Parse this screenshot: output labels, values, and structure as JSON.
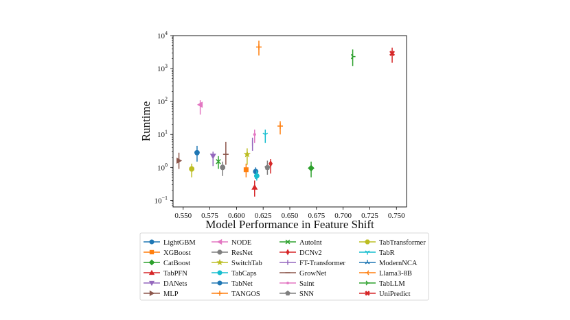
{
  "chart_data": {
    "type": "scatter",
    "xlabel": "Model Performance in Feature Shift",
    "ylabel": "Runtime",
    "xscale": "linear",
    "yscale": "log",
    "xlim": [
      0.5405,
      0.7595
    ],
    "ylim_log10": [
      -1.2,
      4.0
    ],
    "x_ticks": [
      0.55,
      0.575,
      0.6,
      0.625,
      0.65,
      0.675,
      0.7,
      0.725,
      0.75
    ],
    "x_tick_labels": [
      "0.550",
      "0.575",
      "0.600",
      "0.625",
      "0.650",
      "0.675",
      "0.700",
      "0.725",
      "0.750"
    ],
    "y_ticks_log10": [
      -1,
      0,
      1,
      2,
      3,
      4
    ],
    "y_tick_bases": [
      "10",
      "10",
      "10",
      "10",
      "10",
      "10"
    ],
    "y_tick_exps": [
      "−1",
      "0",
      "1",
      "2",
      "3",
      "4"
    ],
    "series": [
      {
        "name": "LightGBM",
        "color": "#1f77b4",
        "marker": "circle",
        "points": [
          {
            "x": 0.563,
            "y": 2.8,
            "ylo": 1.5,
            "yhi": 4.5
          },
          {
            "x": 0.618,
            "y": 0.75,
            "ylo": 0.45,
            "yhi": 1.0
          }
        ]
      },
      {
        "name": "XGBoost",
        "color": "#ff7f0e",
        "marker": "square",
        "points": [
          {
            "x": 0.609,
            "y": 0.85,
            "ylo": 0.5,
            "yhi": 1.3
          }
        ]
      },
      {
        "name": "CatBoost",
        "color": "#2ca02c",
        "marker": "diamond",
        "points": [
          {
            "x": 0.67,
            "y": 0.95,
            "ylo": 0.5,
            "yhi": 1.5
          }
        ]
      },
      {
        "name": "TabPFN",
        "color": "#d62728",
        "marker": "triangle-up",
        "points": [
          {
            "x": 0.617,
            "y": 0.25,
            "ylo": 0.13,
            "yhi": 0.4
          }
        ]
      },
      {
        "name": "DANets",
        "color": "#9467bd",
        "marker": "triangle-down",
        "points": [
          {
            "x": 0.578,
            "y": 2.2,
            "ylo": 1.1,
            "yhi": 3.0
          }
        ]
      },
      {
        "name": "MLP",
        "color": "#8c564b",
        "marker": "triangle-right",
        "points": [
          {
            "x": 0.546,
            "y": 1.6,
            "ylo": 0.9,
            "yhi": 2.8
          }
        ]
      },
      {
        "name": "NODE",
        "color": "#e377c2",
        "marker": "triangle-left",
        "points": [
          {
            "x": 0.566,
            "y": 80,
            "ylo": 40,
            "yhi": 110
          }
        ]
      },
      {
        "name": "ResNet",
        "color": "#7f7f7f",
        "marker": "octagon",
        "points": [
          {
            "x": 0.587,
            "y": 1.0,
            "ylo": 0.55,
            "yhi": 1.5
          }
        ]
      },
      {
        "name": "SwitchTab",
        "color": "#bcbd22",
        "marker": "star",
        "points": [
          {
            "x": 0.61,
            "y": 2.5,
            "ylo": 1.2,
            "yhi": 3.8
          }
        ]
      },
      {
        "name": "TabCaps",
        "color": "#17becf",
        "marker": "circle",
        "points": [
          {
            "x": 0.619,
            "y": 0.55,
            "ylo": 0.4,
            "yhi": 0.8
          }
        ]
      },
      {
        "name": "TabNet",
        "color": "#1f77b4",
        "marker": "circle",
        "points": []
      },
      {
        "name": "TANGOS",
        "color": "#ff7f0e",
        "marker": "plus",
        "points": [
          {
            "x": 0.621,
            "y": 4500,
            "ylo": 2500,
            "yhi": 7000
          },
          {
            "x": 0.641,
            "y": 18,
            "ylo": 10,
            "yhi": 25
          }
        ]
      },
      {
        "name": "AutoInt",
        "color": "#2ca02c",
        "marker": "x",
        "points": [
          {
            "x": 0.583,
            "y": 1.5,
            "ylo": 0.9,
            "yhi": 2.2
          }
        ]
      },
      {
        "name": "DCNv2",
        "color": "#d62728",
        "marker": "thin-diamond",
        "points": [
          {
            "x": 0.632,
            "y": 1.3,
            "ylo": 0.65,
            "yhi": 1.8
          }
        ]
      },
      {
        "name": "FT-Transformer",
        "color": "#9467bd",
        "marker": "vline",
        "points": [
          {
            "x": 0.615,
            "y": 5.5,
            "ylo": 3.2,
            "yhi": 8.0
          }
        ]
      },
      {
        "name": "GrowNet",
        "color": "#8c564b",
        "marker": "hline",
        "points": [
          {
            "x": 0.59,
            "y": 2.5,
            "ylo": 1.2,
            "yhi": 6.0
          }
        ]
      },
      {
        "name": "Saint",
        "color": "#e377c2",
        "marker": "point",
        "points": [
          {
            "x": 0.617,
            "y": 10,
            "ylo": 5.5,
            "yhi": 14
          }
        ]
      },
      {
        "name": "SNN",
        "color": "#7f7f7f",
        "marker": "pentagon",
        "points": [
          {
            "x": 0.629,
            "y": 1.0,
            "ylo": 0.6,
            "yhi": 1.6
          }
        ]
      },
      {
        "name": "TabTransformer",
        "color": "#bcbd22",
        "marker": "octagon",
        "points": [
          {
            "x": 0.558,
            "y": 0.9,
            "ylo": 0.5,
            "yhi": 1.3
          }
        ]
      },
      {
        "name": "TabR",
        "color": "#17becf",
        "marker": "tri-down",
        "points": [
          {
            "x": 0.627,
            "y": 10,
            "ylo": 5.5,
            "yhi": 14
          }
        ]
      },
      {
        "name": "ModernNCA",
        "color": "#1f77b4",
        "marker": "tri-up",
        "points": []
      },
      {
        "name": "Llama3-8B",
        "color": "#ff7f0e",
        "marker": "tri-left",
        "points": []
      },
      {
        "name": "TabLLM",
        "color": "#2ca02c",
        "marker": "tri-right",
        "points": [
          {
            "x": 0.709,
            "y": 2300,
            "ylo": 1200,
            "yhi": 3800
          }
        ]
      },
      {
        "name": "UniPredict",
        "color": "#d62728",
        "marker": "x-filled",
        "points": [
          {
            "x": 0.746,
            "y": 2900,
            "ylo": 1500,
            "yhi": 4300
          }
        ]
      }
    ]
  }
}
